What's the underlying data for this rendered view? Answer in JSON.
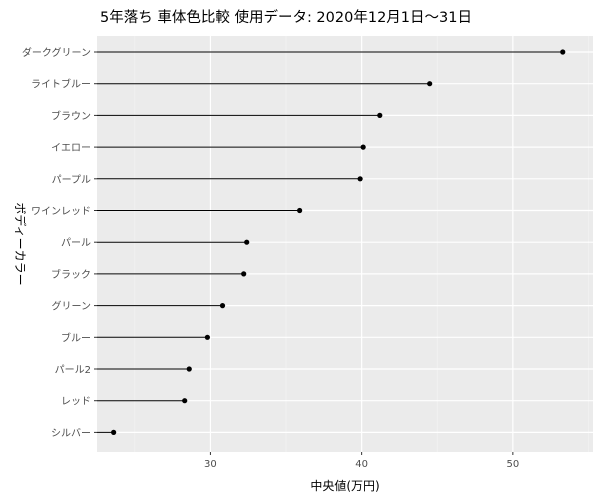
{
  "chart_data": {
    "type": "lollipop",
    "title": "5年落ち 車体色比較 使用データ: 2020年12月1日～31日",
    "xlabel": "中央値(万円)",
    "ylabel": "ボディーカラー",
    "xlim": [
      22.5,
      55.3
    ],
    "xticks": [
      30,
      40,
      50
    ],
    "grid": true,
    "legend": "none",
    "categories": [
      "ダークグリーン",
      "ライトブルー",
      "ブラウン",
      "イエロー",
      "パープル",
      "ワインレッド",
      "パール",
      "ブラック",
      "グリーン",
      "ブルー",
      "パール2",
      "レッド",
      "シルバー"
    ],
    "values": [
      53.3,
      44.5,
      41.2,
      40.1,
      39.9,
      35.9,
      32.4,
      32.2,
      30.8,
      29.8,
      28.6,
      28.3,
      23.6
    ],
    "colors": {
      "panel": "#ebebeb",
      "grid_major": "#ffffff",
      "grid_minor": "#f3f3f3",
      "mark": "#000000",
      "text": "#4d4d4d",
      "title": "#000000"
    }
  }
}
